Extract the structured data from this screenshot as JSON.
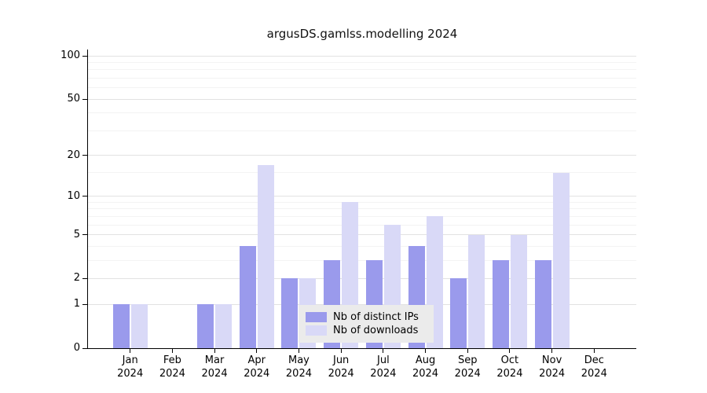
{
  "title": "argusDS.gamlss.modelling 2024",
  "colors": {
    "ips": "#9a9aec",
    "downloads": "#d9d9f7",
    "grid_major": "#e2e2e2",
    "grid_minor": "#f3f3f3",
    "axis": "#000000",
    "legend_bg": "#ebebeb"
  },
  "legend": {
    "items": [
      {
        "key": "ips",
        "label": "Nb of distinct IPs"
      },
      {
        "key": "downloads",
        "label": "Nb of downloads"
      }
    ]
  },
  "y_axis": {
    "ticks": [
      0,
      1,
      2,
      5,
      10,
      20,
      50,
      100
    ],
    "minor_gridlines": [
      3,
      4,
      6,
      7,
      8,
      9,
      15,
      30,
      40,
      60,
      70,
      80,
      90
    ],
    "scale": "log1p"
  },
  "chart_data": {
    "type": "bar",
    "title": "argusDS.gamlss.modelling 2024",
    "categories": [
      "Jan 2024",
      "Feb 2024",
      "Mar 2024",
      "Apr 2024",
      "May 2024",
      "Jun 2024",
      "Jul 2024",
      "Aug 2024",
      "Sep 2024",
      "Oct 2024",
      "Nov 2024",
      "Dec 2024"
    ],
    "series": [
      {
        "name": "Nb of distinct IPs",
        "key": "ips",
        "values": [
          1,
          0,
          1,
          4,
          2,
          3,
          3,
          4,
          2,
          3,
          3,
          0
        ]
      },
      {
        "name": "Nb of downloads",
        "key": "downloads",
        "values": [
          1,
          0,
          1,
          17,
          2,
          9,
          6,
          7,
          5,
          5,
          15,
          0
        ]
      }
    ],
    "xlabel": "",
    "ylabel": "",
    "ylim": [
      0,
      100
    ],
    "grid": true,
    "legend_position": "bottom-center-inside"
  }
}
